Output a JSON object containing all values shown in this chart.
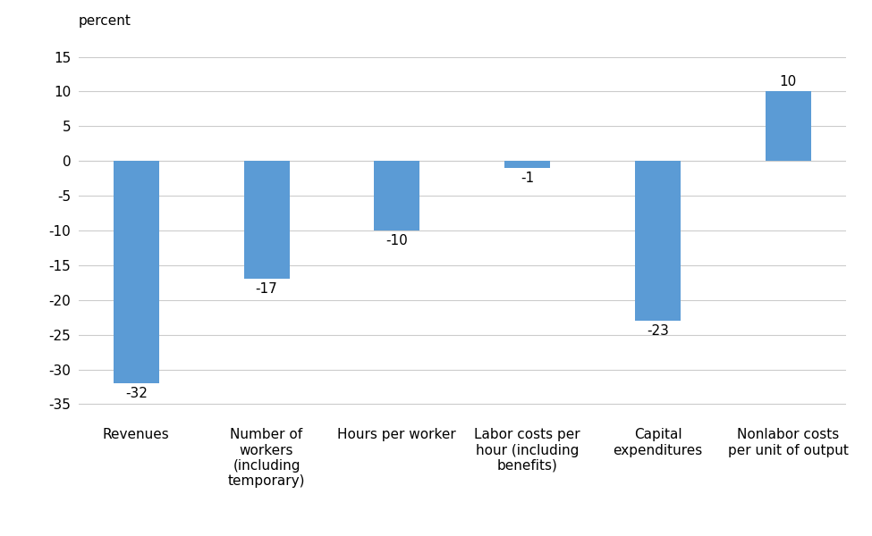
{
  "categories": [
    "Revenues",
    "Number of\nworkers\n(including\ntemporary)",
    "Hours per worker",
    "Labor costs per\nhour (including\nbenefits)",
    "Capital\nexpenditures",
    "Nonlabor costs\nper unit of output"
  ],
  "values": [
    -32,
    -17,
    -10,
    -1,
    -23,
    10
  ],
  "bar_color": "#5B9BD5",
  "ylabel": "percent",
  "ylim": [
    -37,
    17
  ],
  "yticks": [
    -35,
    -30,
    -25,
    -20,
    -15,
    -10,
    -5,
    0,
    5,
    10,
    15
  ],
  "bar_labels": [
    "-32",
    "-17",
    "-10",
    "-1",
    "-23",
    "10"
  ],
  "label_offsets": [
    -0.5,
    -0.5,
    -0.5,
    -0.5,
    -0.5,
    0.5
  ],
  "label_va": [
    "top",
    "top",
    "top",
    "top",
    "top",
    "bottom"
  ],
  "background_color": "#ffffff",
  "grid_color": "#cccccc",
  "tick_label_fontsize": 11,
  "bar_label_fontsize": 11,
  "ylabel_fontsize": 11,
  "bar_width": 0.35,
  "figsize": [
    9.75,
    6.0
  ],
  "dpi": 100
}
